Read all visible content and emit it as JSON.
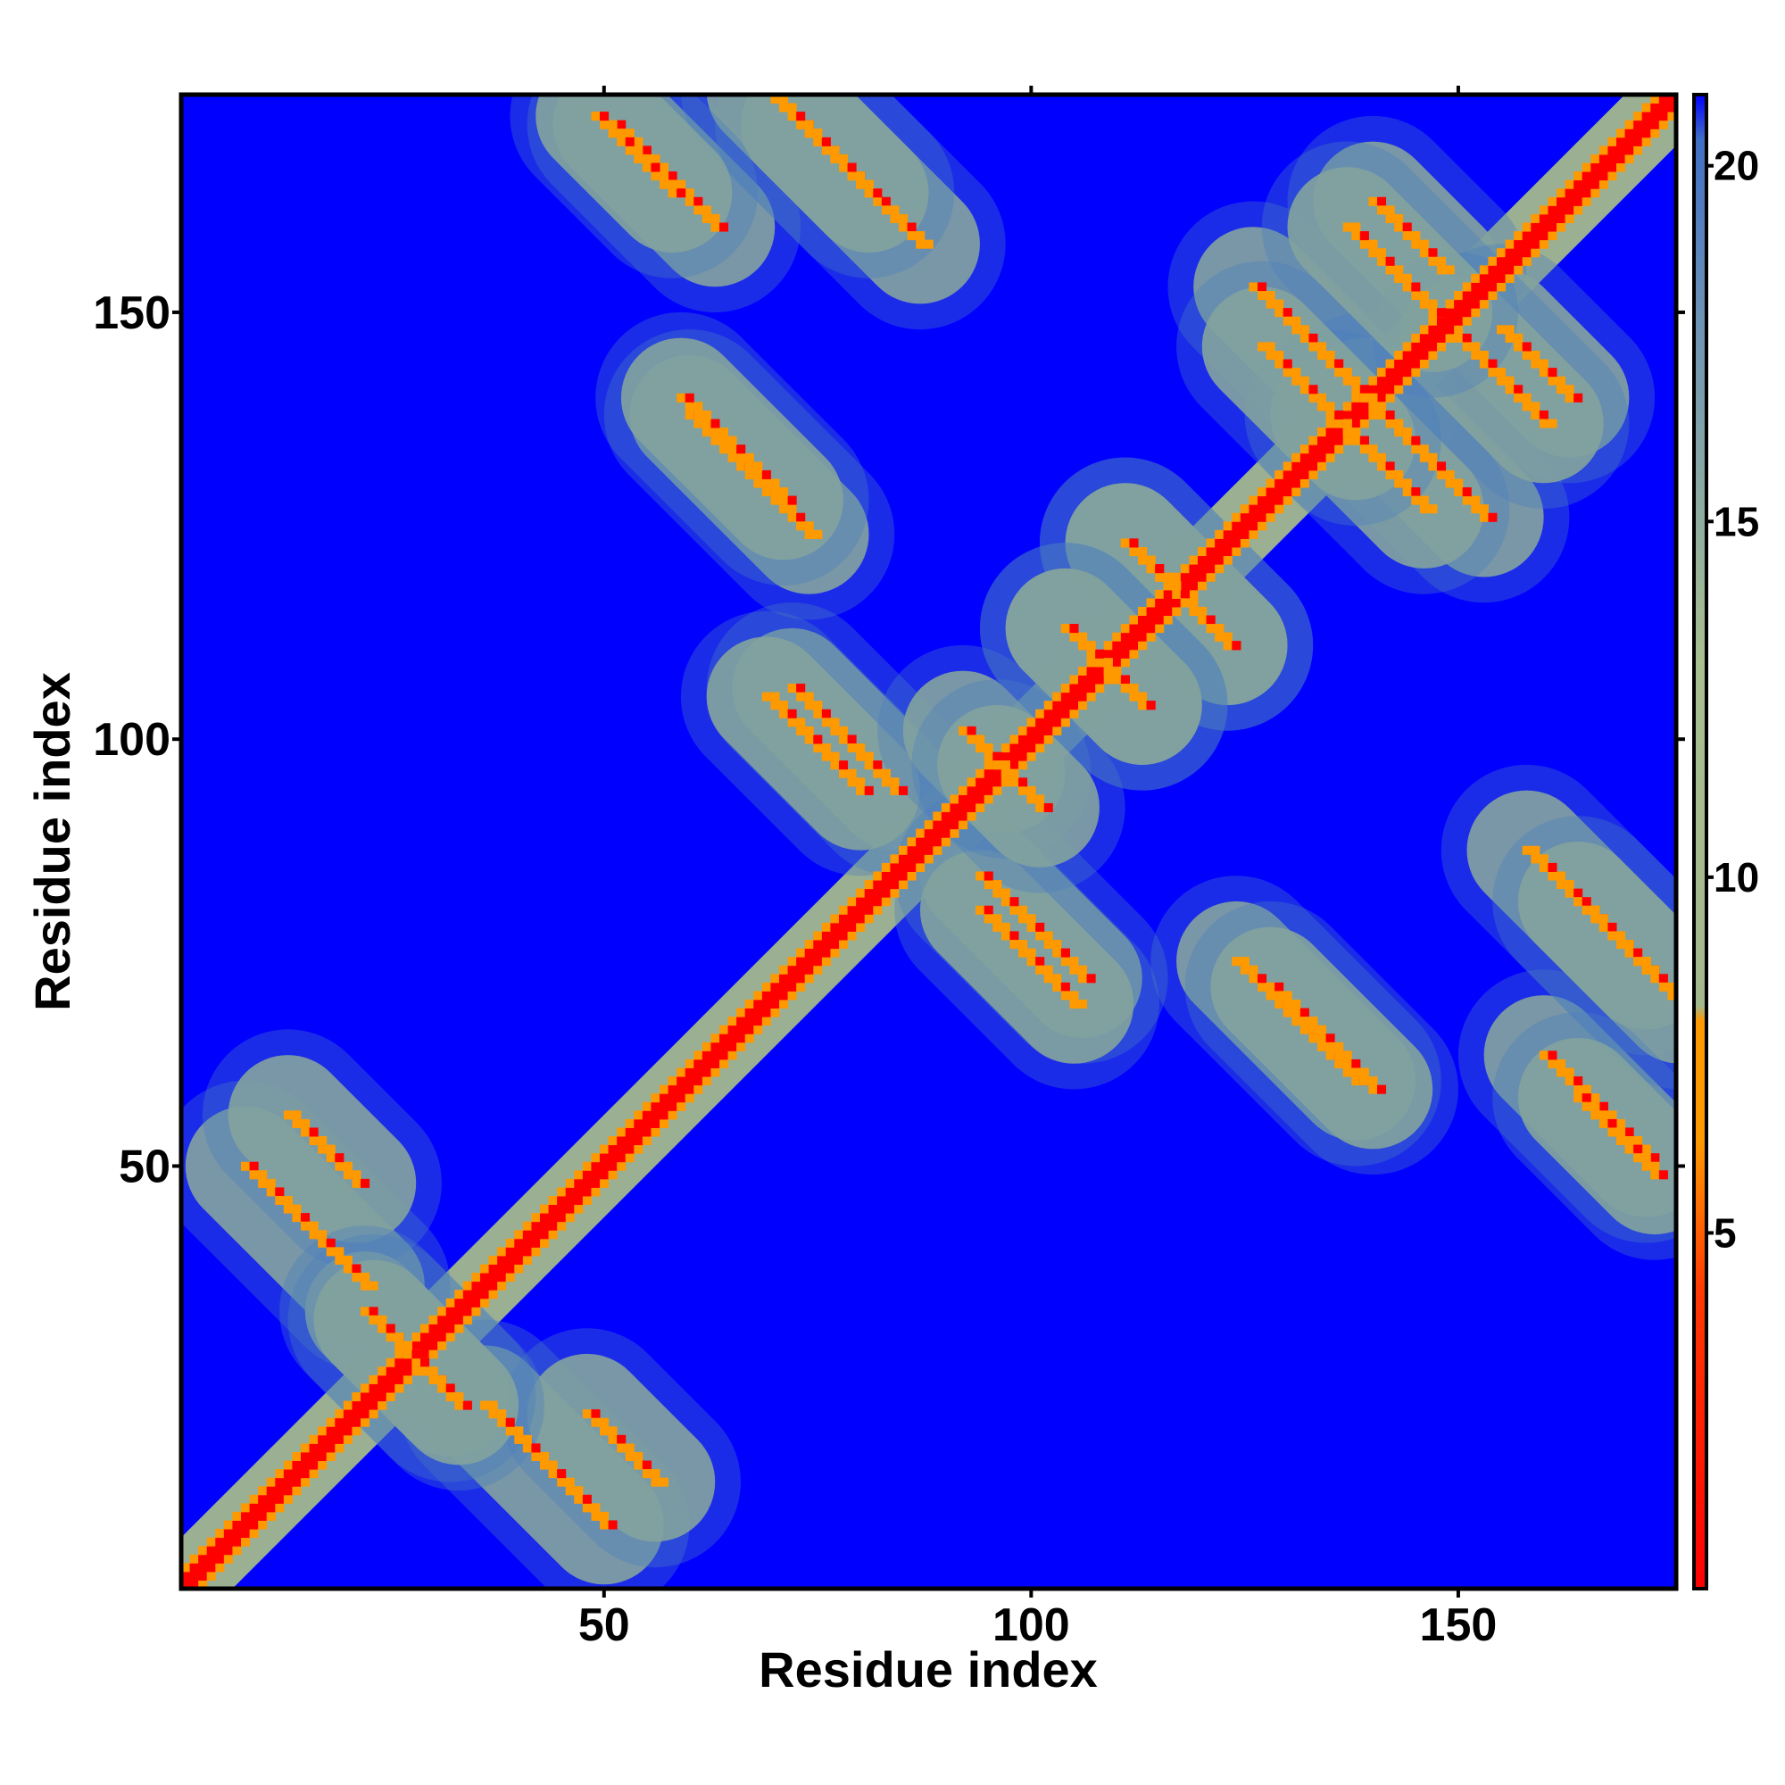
{
  "chart_data": {
    "type": "heatmap",
    "title": "",
    "xlabel": "Residue index",
    "ylabel": "Residue index",
    "xlim": [
      1,
      175
    ],
    "ylim": [
      1,
      175
    ],
    "x_ticks": [
      50,
      100,
      150
    ],
    "y_ticks": [
      50,
      100,
      150
    ],
    "x_tick_labels": [
      "50",
      "100",
      "150"
    ],
    "y_tick_labels": [
      "50",
      "100",
      "150"
    ],
    "colorbar": {
      "range": [
        0,
        21
      ],
      "ticks": [
        5,
        10,
        15,
        20
      ],
      "tick_labels": [
        "5",
        "10",
        "15",
        "20"
      ],
      "colors": {
        "near": "#ff0000",
        "close": "#ff9900",
        "mid": "#a3b88d",
        "far": "#4a7ec0",
        "background": "#0000ff"
      }
    },
    "diagonal_value": 1,
    "contacts": [
      {
        "i": 51,
        "j": 172,
        "k": [
          1,
          -1
        ],
        "len": 12,
        "v": 6
      },
      {
        "i": 73,
        "j": 172,
        "k": [
          1,
          -1
        ],
        "len": 14,
        "v": 6
      },
      {
        "i": 60,
        "j": 138,
        "k": [
          1,
          -1
        ],
        "len": 14,
        "v": 6
      },
      {
        "i": 72,
        "j": 106,
        "k": [
          1,
          -1
        ],
        "len": 12,
        "v": 6
      },
      {
        "i": 94,
        "j": 80,
        "k": [
          1,
          -1
        ],
        "len": 11,
        "v": 6
      },
      {
        "i": 128,
        "j": 71,
        "k": [
          1,
          -1
        ],
        "len": 12,
        "v": 6
      },
      {
        "i": 164,
        "j": 81,
        "k": [
          1,
          -1
        ],
        "len": 12,
        "v": 6
      },
      {
        "i": 164,
        "j": 58,
        "k": [
          1,
          -1
        ],
        "len": 9,
        "v": 6
      },
      {
        "i": 111,
        "j": 123,
        "k": [
          1,
          -1
        ],
        "len": 12,
        "v": 6
      },
      {
        "i": 104,
        "j": 113,
        "k": [
          1,
          -1
        ],
        "len": 9,
        "v": 6
      },
      {
        "i": 126,
        "j": 153,
        "k": [
          1,
          -1
        ],
        "len": 14,
        "v": 6
      },
      {
        "i": 140,
        "j": 163,
        "k": [
          1,
          -1
        ],
        "len": 8,
        "v": 6
      },
      {
        "i": 150,
        "j": 147,
        "k": [
          1,
          -1
        ],
        "len": 10,
        "v": 6
      },
      {
        "i": 135,
        "j": 138,
        "k": [
          1,
          -1
        ],
        "len": 11,
        "v": 6
      },
      {
        "i": 92,
        "j": 101,
        "k": [
          1,
          -1
        ],
        "len": 5,
        "v": 6
      },
      {
        "i": 8,
        "j": 50,
        "k": [
          1,
          -1
        ],
        "len": 14,
        "v": 6
      },
      {
        "i": 48,
        "j": 21,
        "k": [
          1,
          -1
        ],
        "len": 8,
        "v": 6
      },
      {
        "i": 22,
        "j": 33,
        "k": [
          1,
          -1
        ],
        "len": 10,
        "v": 6
      }
    ],
    "background_value": 21
  }
}
